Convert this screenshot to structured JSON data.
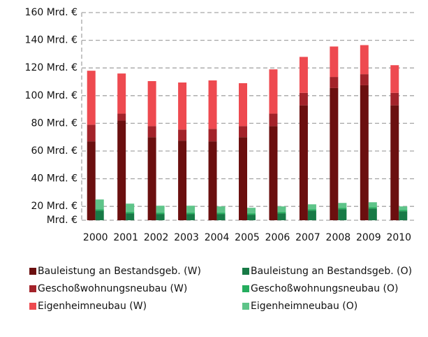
{
  "chart_data": {
    "type": "stacked_bar",
    "categories": [
      "2000",
      "2001",
      "2002",
      "2003",
      "2004",
      "2005",
      "2006",
      "2007",
      "2008",
      "2009",
      "2010"
    ],
    "series": [
      {
        "name": "Bauleistung an Bestandsgeb. (W)",
        "color": "#6b0f0f",
        "values": [
          67,
          82,
          70,
          67.5,
          67,
          70,
          78,
          93,
          105.5,
          107.5,
          93
        ]
      },
      {
        "name": "Bauleistung an Bestandsgeb. (O)",
        "color": "#177a46",
        "values": [
          17,
          15,
          14.5,
          14.5,
          14.5,
          14,
          15,
          17,
          18,
          18.5,
          16.5
        ]
      },
      {
        "name": "Geschoßwohnungsneubau (W)",
        "color": "#a3232a",
        "values": [
          12,
          5,
          8,
          8,
          9,
          8,
          9,
          9,
          8,
          8,
          9
        ]
      },
      {
        "name": "Geschoßwohnungsneubau (O)",
        "color": "#25ad5e",
        "values": [
          1,
          1,
          1,
          1,
          1,
          1,
          1,
          1,
          1,
          1,
          1
        ]
      },
      {
        "name": "Eigenheimneubau (W)",
        "color": "#ee4a50",
        "values": [
          39,
          29,
          32.5,
          34,
          35,
          31,
          32,
          26,
          22,
          21,
          20
        ]
      },
      {
        "name": "Eigenheimneubau (O)",
        "color": "#5ec489",
        "values": [
          7,
          6,
          5,
          5,
          4.5,
          4,
          4,
          3.5,
          3.5,
          3.5,
          2.5
        ]
      }
    ],
    "ylim": [
      10,
      160
    ],
    "yticks": [
      {
        "value": 10,
        "label": "Mrd. €"
      },
      {
        "value": 20,
        "label": "20 Mrd. €"
      },
      {
        "value": 40,
        "label": "40 Mrd. €"
      },
      {
        "value": 60,
        "label": "60 Mrd. €"
      },
      {
        "value": 80,
        "label": "80 Mrd. €"
      },
      {
        "value": 100,
        "label": "100 Mrd. €"
      },
      {
        "value": 120,
        "label": "120 Mrd. €"
      },
      {
        "value": 140,
        "label": "140 Mrd. €"
      },
      {
        "value": 160,
        "label": "160 Mrd. €"
      }
    ],
    "grid": true
  }
}
